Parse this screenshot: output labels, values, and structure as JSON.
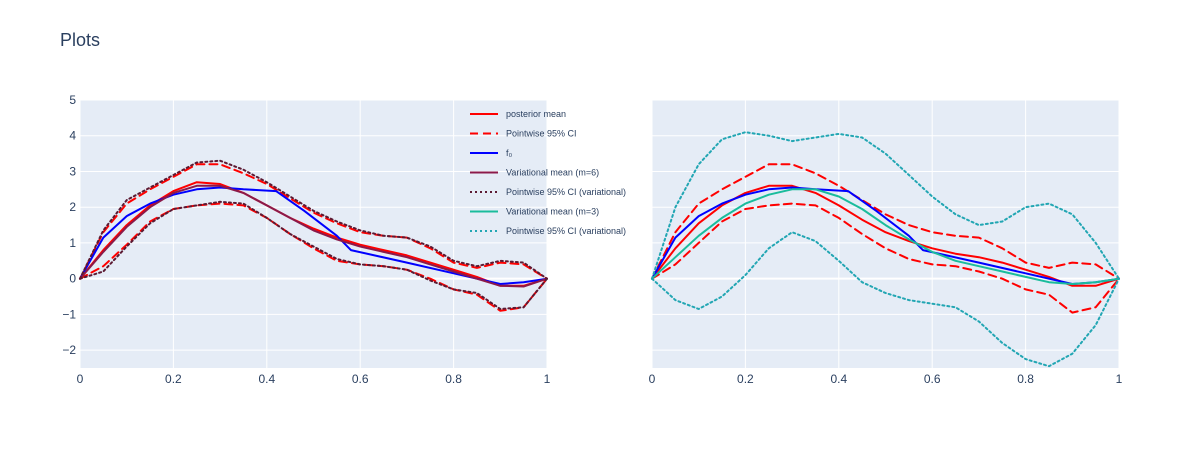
{
  "title": "Plots",
  "colors": {
    "plot_bg": "#E5ECF6",
    "grid": "#ffffff",
    "text": "#2a3f5f"
  },
  "chart_data": [
    {
      "type": "line",
      "title": "",
      "xlim": [
        0,
        1
      ],
      "ylim": [
        -2.5,
        5
      ],
      "xticks": [
        0,
        0.2,
        0.4,
        0.6,
        0.8,
        1
      ],
      "xtick_labels": [
        "0",
        "0.2",
        "0.4",
        "0.6",
        "0.8",
        "1"
      ],
      "yticks": [
        -2,
        -1,
        0,
        1,
        2,
        3,
        4,
        5
      ],
      "ytick_labels": [
        "−2",
        "−1",
        "0",
        "1",
        "2",
        "3",
        "4",
        "5"
      ],
      "grid": true,
      "legend_position": "top-right",
      "series": [
        {
          "name": "posterior mean",
          "color": "#ff0000",
          "dash": "solid",
          "width": 2,
          "x": [
            0,
            0.05,
            0.1,
            0.15,
            0.2,
            0.25,
            0.3,
            0.35,
            0.4,
            0.45,
            0.5,
            0.55,
            0.6,
            0.65,
            0.7,
            0.75,
            0.8,
            0.85,
            0.9,
            0.95,
            1
          ],
          "y": [
            0,
            0.8,
            1.5,
            2.05,
            2.45,
            2.7,
            2.65,
            2.4,
            2.05,
            1.7,
            1.4,
            1.15,
            0.95,
            0.8,
            0.65,
            0.45,
            0.25,
            0.05,
            -0.2,
            -0.2,
            0
          ]
        },
        {
          "name": "Pointwise 95% CI",
          "color": "#ff0000",
          "dash": "dashed",
          "width": 2,
          "x": [
            0,
            0.05,
            0.1,
            0.15,
            0.2,
            0.25,
            0.3,
            0.35,
            0.4,
            0.45,
            0.5,
            0.55,
            0.6,
            0.65,
            0.7,
            0.75,
            0.8,
            0.85,
            0.9,
            0.95,
            1
          ],
          "y": [
            0,
            1.3,
            2.1,
            2.5,
            2.85,
            3.2,
            3.2,
            2.95,
            2.65,
            2.25,
            1.85,
            1.55,
            1.3,
            1.2,
            1.15,
            0.85,
            0.45,
            0.3,
            0.45,
            0.4,
            0
          ]
        },
        {
          "name": "Pointwise 95% CI",
          "color": "#ff0000",
          "dash": "dashed",
          "width": 2,
          "show_legend": false,
          "x": [
            0,
            0.05,
            0.1,
            0.15,
            0.2,
            0.25,
            0.3,
            0.35,
            0.4,
            0.45,
            0.5,
            0.55,
            0.6,
            0.65,
            0.7,
            0.75,
            0.8,
            0.85,
            0.9,
            0.95,
            1
          ],
          "y": [
            0,
            0.35,
            0.95,
            1.6,
            1.95,
            2.05,
            2.1,
            2.05,
            1.7,
            1.25,
            0.85,
            0.5,
            0.4,
            0.35,
            0.25,
            0.0,
            -0.3,
            -0.45,
            -0.9,
            -0.8,
            0
          ]
        },
        {
          "name": "f_0",
          "color": "#0000ff",
          "dash": "solid",
          "width": 2,
          "x": [
            0,
            0.05,
            0.1,
            0.15,
            0.2,
            0.25,
            0.3,
            0.35,
            0.42,
            0.48,
            0.55,
            0.58,
            0.7,
            0.8,
            0.9,
            0.95,
            1
          ],
          "y": [
            0,
            1.15,
            1.75,
            2.1,
            2.35,
            2.5,
            2.55,
            2.5,
            2.45,
            1.9,
            1.2,
            0.8,
            0.45,
            0.15,
            -0.15,
            -0.1,
            0
          ]
        },
        {
          "name": "Variational mean (m=6)",
          "color": "#8b1a4a",
          "dash": "solid",
          "width": 2,
          "x": [
            0,
            0.05,
            0.1,
            0.15,
            0.2,
            0.25,
            0.3,
            0.35,
            0.4,
            0.45,
            0.5,
            0.55,
            0.6,
            0.65,
            0.7,
            0.75,
            0.8,
            0.85,
            0.9,
            0.95,
            1
          ],
          "y": [
            0,
            0.75,
            1.45,
            2.0,
            2.4,
            2.6,
            2.6,
            2.4,
            2.05,
            1.7,
            1.35,
            1.1,
            0.9,
            0.75,
            0.6,
            0.4,
            0.2,
            0.0,
            -0.2,
            -0.22,
            0
          ]
        },
        {
          "name": "Pointwise 95% CI (variational)",
          "color": "#5c1a33",
          "dash": "dotted",
          "width": 2,
          "x": [
            0,
            0.05,
            0.1,
            0.15,
            0.2,
            0.25,
            0.3,
            0.35,
            0.4,
            0.45,
            0.5,
            0.55,
            0.6,
            0.65,
            0.7,
            0.75,
            0.8,
            0.85,
            0.9,
            0.95,
            1
          ],
          "y": [
            0,
            1.35,
            2.2,
            2.55,
            2.9,
            3.25,
            3.3,
            3.05,
            2.7,
            2.3,
            1.9,
            1.6,
            1.35,
            1.2,
            1.15,
            0.9,
            0.5,
            0.35,
            0.5,
            0.45,
            0
          ]
        },
        {
          "name": "Pointwise 95% CI (variational)",
          "color": "#5c1a33",
          "dash": "dotted",
          "width": 2,
          "show_legend": false,
          "x": [
            0,
            0.05,
            0.1,
            0.15,
            0.2,
            0.25,
            0.3,
            0.35,
            0.4,
            0.45,
            0.5,
            0.55,
            0.6,
            0.65,
            0.7,
            0.75,
            0.8,
            0.85,
            0.9,
            0.95,
            1
          ],
          "y": [
            0,
            0.2,
            0.9,
            1.55,
            1.95,
            2.05,
            2.15,
            2.1,
            1.7,
            1.25,
            0.9,
            0.55,
            0.4,
            0.35,
            0.25,
            -0.05,
            -0.3,
            -0.4,
            -0.85,
            -0.8,
            0
          ]
        }
      ]
    },
    {
      "type": "line",
      "title": "",
      "xlim": [
        0,
        1
      ],
      "ylim": [
        -2.5,
        5
      ],
      "xticks": [
        0,
        0.2,
        0.4,
        0.6,
        0.8,
        1
      ],
      "xtick_labels": [
        "0",
        "0.2",
        "0.4",
        "0.6",
        "0.8",
        "1"
      ],
      "grid": true,
      "series": [
        {
          "name": "posterior mean",
          "color": "#ff0000",
          "dash": "solid",
          "width": 2,
          "x": [
            0,
            0.05,
            0.1,
            0.15,
            0.2,
            0.25,
            0.3,
            0.35,
            0.4,
            0.45,
            0.5,
            0.55,
            0.6,
            0.65,
            0.7,
            0.75,
            0.8,
            0.85,
            0.9,
            0.95,
            1
          ],
          "y": [
            0,
            0.85,
            1.55,
            2.05,
            2.4,
            2.6,
            2.6,
            2.4,
            2.05,
            1.65,
            1.3,
            1.05,
            0.85,
            0.7,
            0.6,
            0.45,
            0.25,
            0.05,
            -0.2,
            -0.2,
            0
          ]
        },
        {
          "name": "Pointwise 95% CI",
          "color": "#ff0000",
          "dash": "dashed",
          "width": 2,
          "x": [
            0,
            0.05,
            0.1,
            0.15,
            0.2,
            0.25,
            0.3,
            0.35,
            0.4,
            0.45,
            0.5,
            0.55,
            0.6,
            0.65,
            0.7,
            0.75,
            0.8,
            0.85,
            0.9,
            0.95,
            1
          ],
          "y": [
            0,
            1.3,
            2.1,
            2.5,
            2.85,
            3.2,
            3.2,
            2.95,
            2.6,
            2.2,
            1.8,
            1.5,
            1.3,
            1.2,
            1.15,
            0.85,
            0.45,
            0.3,
            0.45,
            0.4,
            0
          ]
        },
        {
          "name": "Pointwise 95% CI",
          "color": "#ff0000",
          "dash": "dashed",
          "width": 2,
          "show_legend": false,
          "x": [
            0,
            0.05,
            0.1,
            0.15,
            0.2,
            0.25,
            0.3,
            0.35,
            0.4,
            0.45,
            0.5,
            0.55,
            0.6,
            0.65,
            0.7,
            0.75,
            0.8,
            0.85,
            0.9,
            0.95,
            1
          ],
          "y": [
            0,
            0.4,
            1.0,
            1.6,
            1.95,
            2.05,
            2.1,
            2.05,
            1.7,
            1.25,
            0.85,
            0.55,
            0.4,
            0.35,
            0.2,
            0.0,
            -0.3,
            -0.45,
            -0.95,
            -0.8,
            0
          ]
        },
        {
          "name": "f_0",
          "color": "#0000ff",
          "dash": "solid",
          "width": 2,
          "x": [
            0,
            0.05,
            0.1,
            0.15,
            0.2,
            0.25,
            0.3,
            0.35,
            0.42,
            0.48,
            0.55,
            0.58,
            0.7,
            0.8,
            0.9,
            0.95,
            1
          ],
          "y": [
            0,
            1.15,
            1.75,
            2.1,
            2.35,
            2.5,
            2.55,
            2.5,
            2.45,
            1.9,
            1.2,
            0.8,
            0.45,
            0.15,
            -0.15,
            -0.1,
            0
          ]
        },
        {
          "name": "Variational mean (m=3)",
          "color": "#1abc9c",
          "dash": "solid",
          "width": 2,
          "x": [
            0,
            0.05,
            0.1,
            0.15,
            0.2,
            0.25,
            0.3,
            0.35,
            0.4,
            0.45,
            0.5,
            0.55,
            0.6,
            0.65,
            0.7,
            0.75,
            0.8,
            0.85,
            0.9,
            0.95,
            1
          ],
          "y": [
            0,
            0.6,
            1.2,
            1.7,
            2.1,
            2.35,
            2.5,
            2.5,
            2.3,
            1.95,
            1.5,
            1.1,
            0.75,
            0.5,
            0.35,
            0.2,
            0.05,
            -0.1,
            -0.15,
            -0.1,
            0
          ]
        },
        {
          "name": "Pointwise 95% CI (variational)",
          "color": "#22a6b3",
          "dash": "dotted",
          "width": 2,
          "x": [
            0,
            0.05,
            0.1,
            0.15,
            0.2,
            0.25,
            0.3,
            0.35,
            0.4,
            0.45,
            0.5,
            0.55,
            0.6,
            0.65,
            0.7,
            0.75,
            0.8,
            0.85,
            0.9,
            0.95,
            1
          ],
          "y": [
            0,
            2.0,
            3.2,
            3.9,
            4.1,
            4.0,
            3.85,
            3.95,
            4.05,
            3.95,
            3.5,
            2.9,
            2.3,
            1.8,
            1.5,
            1.6,
            2.0,
            2.1,
            1.8,
            1.0,
            0
          ]
        },
        {
          "name": "Pointwise 95% CI (variational)",
          "color": "#22a6b3",
          "dash": "dotted",
          "width": 2,
          "show_legend": false,
          "x": [
            0,
            0.05,
            0.1,
            0.15,
            0.2,
            0.25,
            0.3,
            0.35,
            0.4,
            0.45,
            0.5,
            0.55,
            0.6,
            0.65,
            0.7,
            0.75,
            0.8,
            0.85,
            0.9,
            0.95,
            1
          ],
          "y": [
            0,
            -0.6,
            -0.85,
            -0.5,
            0.1,
            0.85,
            1.3,
            1.05,
            0.5,
            -0.1,
            -0.4,
            -0.6,
            -0.7,
            -0.8,
            -1.2,
            -1.8,
            -2.25,
            -2.45,
            -2.1,
            -1.3,
            0
          ]
        }
      ]
    }
  ],
  "legend": [
    {
      "label": "posterior mean",
      "color": "#ff0000",
      "dash": "solid"
    },
    {
      "label": "Pointwise 95% CI",
      "color": "#ff0000",
      "dash": "dashed"
    },
    {
      "label": "f₀",
      "color": "#0000ff",
      "dash": "solid"
    },
    {
      "label": "Variational mean (m=6)",
      "color": "#8b1a4a",
      "dash": "solid"
    },
    {
      "label": "Pointwise 95% CI (variational)",
      "color": "#5c1a33",
      "dash": "dotted"
    },
    {
      "label": "Variational mean (m=3)",
      "color": "#1abc9c",
      "dash": "solid"
    },
    {
      "label": "Pointwise 95% CI (variational)",
      "color": "#22a6b3",
      "dash": "dotted"
    }
  ]
}
